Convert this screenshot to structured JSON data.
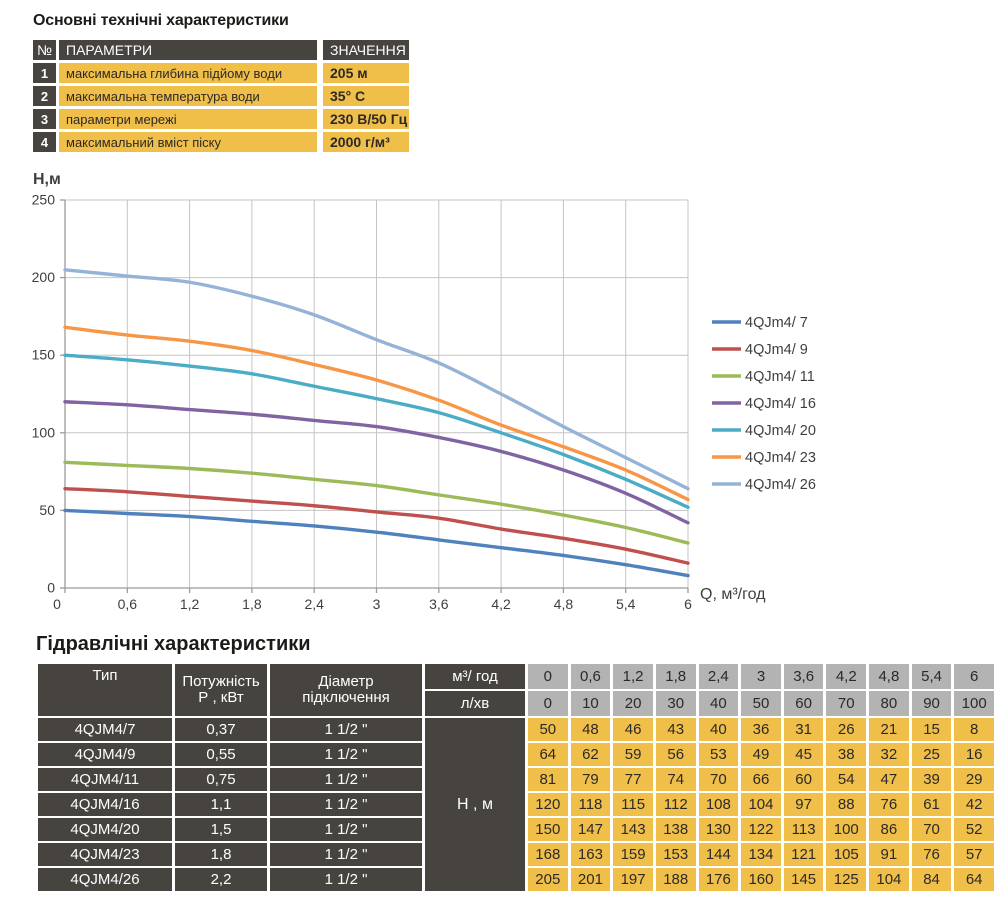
{
  "colors": {
    "dark_cell": "#474440",
    "yellow_cell": "#f0bf4a",
    "gray_cell": "#b3b3b3",
    "grid_line": "#c4c4c4",
    "axis_line": "#9b9b9b",
    "tick_text": "#3f3f3f"
  },
  "tech_table": {
    "title": "Основні технічні характеристики",
    "headers": {
      "num": "№",
      "param": "ПАРАМЕТРИ",
      "value": "ЗНАЧЕННЯ"
    },
    "rows": [
      {
        "num": "1",
        "param": "максимальна глибина підйому води",
        "value": "205 м"
      },
      {
        "num": "2",
        "param": "максимальна температура води",
        "value": "35° С"
      },
      {
        "num": "3",
        "param": "параметри мережі",
        "value": "230 В/50 Гц"
      },
      {
        "num": "4",
        "param": "максимальний вміст піску",
        "value": "2000 г/м³"
      }
    ]
  },
  "chart_data": {
    "type": "line",
    "ylabel": "Н,м",
    "xlabel": "Q,  м³/год",
    "x": [
      0,
      0.6,
      1.2,
      1.8,
      2.4,
      3,
      3.6,
      4.2,
      4.8,
      5.4,
      6
    ],
    "x_tick_labels": [
      "0",
      "0,6",
      "1,2",
      "1,8",
      "2,4",
      "3",
      "3,6",
      "4,2",
      "4,8",
      "5,4",
      "6"
    ],
    "y_ticks": [
      0,
      50,
      100,
      150,
      200,
      250
    ],
    "ylim": [
      0,
      250
    ],
    "xlim": [
      0,
      6
    ],
    "grid": true,
    "legend_position": "right",
    "series": [
      {
        "name": "4QJm4/ 7",
        "color": "#4f81bd",
        "values": [
          50,
          48,
          46,
          43,
          40,
          36,
          31,
          26,
          21,
          15,
          8
        ]
      },
      {
        "name": "4QJm4/ 9",
        "color": "#c0504d",
        "values": [
          64,
          62,
          59,
          56,
          53,
          49,
          45,
          38,
          32,
          25,
          16
        ]
      },
      {
        "name": "4QJm4/ 11",
        "color": "#9bbb59",
        "values": [
          81,
          79,
          77,
          74,
          70,
          66,
          60,
          54,
          47,
          39,
          29
        ]
      },
      {
        "name": "4QJm4/ 16",
        "color": "#8064a2",
        "values": [
          120,
          118,
          115,
          112,
          108,
          104,
          97,
          88,
          76,
          61,
          42
        ]
      },
      {
        "name": "4QJm4/ 20",
        "color": "#4bacc6",
        "values": [
          150,
          147,
          143,
          138,
          130,
          122,
          113,
          100,
          86,
          70,
          52
        ]
      },
      {
        "name": "4QJm4/ 23",
        "color": "#f79646",
        "values": [
          168,
          163,
          159,
          153,
          144,
          134,
          121,
          105,
          91,
          76,
          57
        ]
      },
      {
        "name": "4QJm4/ 26",
        "color": "#95b3d7",
        "values": [
          205,
          201,
          197,
          188,
          176,
          160,
          145,
          125,
          104,
          84,
          64
        ]
      }
    ]
  },
  "hydraulic_table": {
    "title": "Гідравлічні характеристики",
    "col_headers": {
      "type": "Тип",
      "power_line1": "Потужність",
      "power_line2": "Р , кВт",
      "diameter_line1": "Діаметр",
      "diameter_line2": "підключення",
      "flow_m3": "м³/ год",
      "flow_lmin": "л/хв",
      "head": "Н , м"
    },
    "flow_m3_values": [
      "0",
      "0,6",
      "1,2",
      "1,8",
      "2,4",
      "3",
      "3,6",
      "4,2",
      "4,8",
      "5,4",
      "6"
    ],
    "flow_lmin_values": [
      "0",
      "10",
      "20",
      "30",
      "40",
      "50",
      "60",
      "70",
      "80",
      "90",
      "100"
    ],
    "rows": [
      {
        "type": "4QJM4/7",
        "power": "0,37",
        "diameter": "1 1/2 \"",
        "heads": [
          "50",
          "48",
          "46",
          "43",
          "40",
          "36",
          "31",
          "26",
          "21",
          "15",
          "8"
        ]
      },
      {
        "type": "4QJM4/9",
        "power": "0,55",
        "diameter": "1 1/2 \"",
        "heads": [
          "64",
          "62",
          "59",
          "56",
          "53",
          "49",
          "45",
          "38",
          "32",
          "25",
          "16"
        ]
      },
      {
        "type": "4QJM4/11",
        "power": "0,75",
        "diameter": "1 1/2 \"",
        "heads": [
          "81",
          "79",
          "77",
          "74",
          "70",
          "66",
          "60",
          "54",
          "47",
          "39",
          "29"
        ]
      },
      {
        "type": "4QJM4/16",
        "power": "1,1",
        "diameter": "1 1/2 \"",
        "heads": [
          "120",
          "118",
          "115",
          "112",
          "108",
          "104",
          "97",
          "88",
          "76",
          "61",
          "42"
        ]
      },
      {
        "type": "4QJM4/20",
        "power": "1,5",
        "diameter": "1 1/2 \"",
        "heads": [
          "150",
          "147",
          "143",
          "138",
          "130",
          "122",
          "113",
          "100",
          "86",
          "70",
          "52"
        ]
      },
      {
        "type": "4QJM4/23",
        "power": "1,8",
        "diameter": "1 1/2 \"",
        "heads": [
          "168",
          "163",
          "159",
          "153",
          "144",
          "134",
          "121",
          "105",
          "91",
          "76",
          "57"
        ]
      },
      {
        "type": "4QJM4/26",
        "power": "2,2",
        "diameter": "1 1/2 \"",
        "heads": [
          "205",
          "201",
          "197",
          "188",
          "176",
          "160",
          "145",
          "125",
          "104",
          "84",
          "64"
        ]
      }
    ]
  }
}
